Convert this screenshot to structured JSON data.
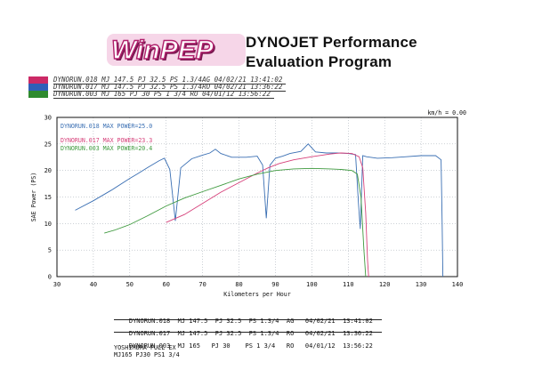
{
  "header": {
    "logo_text": "WinPEP",
    "title_line1": "DYNOJET Performance",
    "title_line2": "Evaluation Program"
  },
  "legend": [
    {
      "text": "DYNORUN.018  MJ 147.5  PJ 32.5  PS 1.3/4AG  04/02/21  13:41:02",
      "color": "#cc2a66"
    },
    {
      "text": "DYNORUN.017  MJ 147.5  PJ 32.5  PS 1.3/4RO  04/02/21  13:36:22",
      "color": "#2f5fb8"
    },
    {
      "text": "DYNORUN.003  MJ 165  PJ 30  PS 1 3/4     RO  04/01/12  13:56:22",
      "color": "#2e8a2e"
    }
  ],
  "chart_data": {
    "type": "line",
    "xlabel": "Kilometers per Hour",
    "ylabel": "SAE Power (PS)",
    "xlim": [
      30,
      140
    ],
    "ylim": [
      0,
      30
    ],
    "xticks": [
      30,
      40,
      50,
      60,
      70,
      80,
      90,
      100,
      110,
      120,
      130,
      140
    ],
    "yticks": [
      0,
      5,
      10,
      15,
      20,
      25,
      30
    ],
    "grid": true,
    "corner_label": "km/h = 0.00",
    "series": [
      {
        "name": "DYNORUN.018",
        "annotation": "MAX POWER=25.0",
        "color": "#3a6fb3",
        "x": [
          35,
          40,
          45,
          50,
          52,
          55,
          58,
          59.5,
          61,
          62.5,
          64,
          67,
          70,
          72,
          73.5,
          75,
          78,
          82,
          85,
          86.5,
          87.5,
          88.5,
          90,
          92,
          94,
          97,
          99,
          101,
          104,
          107,
          110,
          112,
          112.8,
          113.3,
          114,
          115,
          118,
          122,
          126,
          130,
          134,
          135.5,
          135.8,
          136
        ],
        "y": [
          12.5,
          14.3,
          16.3,
          18.5,
          19.3,
          20.6,
          21.8,
          22.3,
          20.2,
          10.5,
          20.5,
          22.2,
          22.9,
          23.3,
          24.0,
          23.2,
          22.5,
          22.5,
          22.7,
          21.0,
          11.0,
          21.0,
          22.3,
          22.7,
          23.2,
          23.6,
          25.0,
          23.5,
          23.3,
          23.3,
          23.2,
          23.0,
          14.0,
          9.0,
          22.8,
          22.6,
          22.3,
          22.4,
          22.6,
          22.8,
          22.8,
          22.0,
          10.0,
          0
        ]
      },
      {
        "name": "DYNORUN.017",
        "annotation": "MAX POWER=23.3",
        "color": "#d6407a",
        "x": [
          60,
          65,
          70,
          75,
          80,
          85,
          88,
          91,
          95,
          100,
          105,
          108,
          111,
          113,
          114,
          114.8,
          115.3,
          115.6
        ],
        "y": [
          10.2,
          11.7,
          13.8,
          15.9,
          17.7,
          19.5,
          20.5,
          21.3,
          22.0,
          22.6,
          23.1,
          23.3,
          23.2,
          22.6,
          20.5,
          12.0,
          3.0,
          0
        ]
      },
      {
        "name": "DYNORUN.003",
        "annotation": "MAX POWER=20.4",
        "color": "#3f9a3f",
        "x": [
          43,
          46,
          50,
          55,
          60,
          65,
          70,
          75,
          80,
          85,
          90,
          95,
          100,
          105,
          108,
          111,
          112.5,
          113.5,
          114.3,
          114.8
        ],
        "y": [
          8.2,
          8.8,
          9.8,
          11.5,
          13.3,
          14.8,
          16.0,
          17.2,
          18.4,
          19.3,
          20.0,
          20.3,
          20.4,
          20.3,
          20.2,
          20.0,
          19.3,
          15.0,
          5.0,
          0
        ]
      }
    ]
  },
  "table": {
    "rows": [
      "DYNORUN.018  MJ 147.5  PJ 32.5  PS 1.3/4  AG   04/02/21  13:41:02",
      "DYNORUN.017  MJ 147.5  PJ 32.5  PS 1.3/4  RO   04/02/21  13:36:22",
      "DYNORUN.003  MJ 165   PJ 30    PS 1 3/4   RO   04/01/12  13:56:22"
    ],
    "notes": [
      "YOSHIMURA FULL EX",
      "MJ165 PJ30 PS1 3/4"
    ]
  }
}
